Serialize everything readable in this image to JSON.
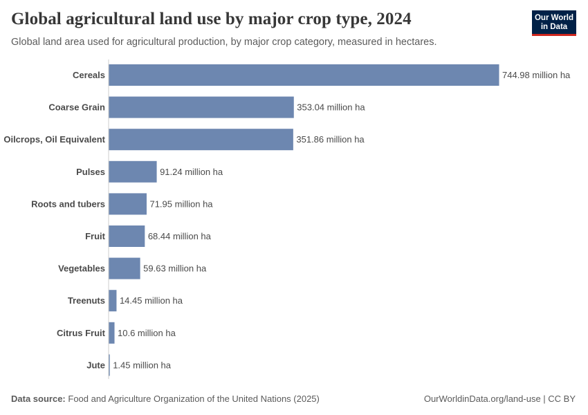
{
  "header": {
    "title": "Global agricultural land use by major crop type, 2024",
    "subtitle": "Global land area used for agricultural production, by major crop category, measured in hectares."
  },
  "logo": {
    "line1": "Our World",
    "line2": "in Data"
  },
  "footer": {
    "source_label": "Data source:",
    "source_text": "Food and Agriculture Organization of the United Nations (2025)",
    "right_text": "OurWorldinData.org/land-use | CC BY"
  },
  "colors": {
    "bar": "#6d87b0",
    "axis": "#cccccc",
    "label": "#4a4a4a"
  },
  "chart_data": {
    "type": "bar",
    "orientation": "horizontal",
    "title": "Global agricultural land use by major crop type, 2024",
    "unit": "million ha",
    "categories": [
      "Cereals",
      "Coarse Grain",
      "Oilcrops, Oil Equivalent",
      "Pulses",
      "Roots and tubers",
      "Fruit",
      "Vegetables",
      "Treenuts",
      "Citrus Fruit",
      "Jute"
    ],
    "values": [
      744.98,
      353.04,
      351.86,
      91.24,
      71.95,
      68.44,
      59.63,
      14.45,
      10.6,
      1.45
    ],
    "value_labels": [
      "744.98 million ha",
      "353.04 million ha",
      "351.86 million ha",
      "91.24 million ha",
      "71.95 million ha",
      "68.44 million ha",
      "59.63 million ha",
      "14.45 million ha",
      "10.6 million ha",
      "1.45 million ha"
    ],
    "xlim": [
      0,
      744.98
    ]
  }
}
